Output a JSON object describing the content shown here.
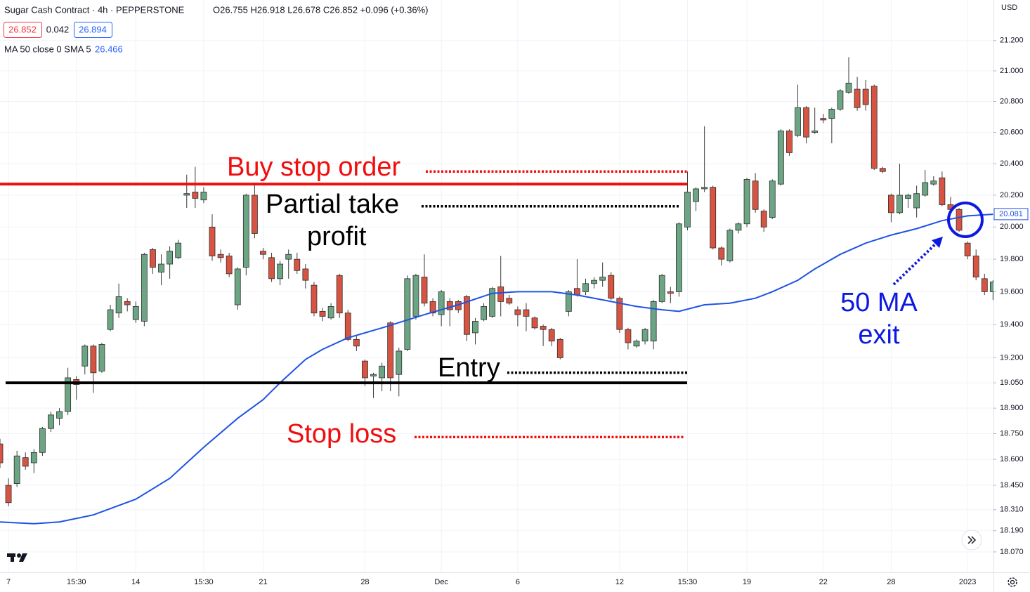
{
  "chart_data": {
    "type": "candlestick",
    "header": {
      "symbol": "Sugar Cash Contract · 4h · PEPPERSTONE",
      "ohlc_text": "O26.755 H26.918 L26.678 C26.852 +0.096 (+0.36%)",
      "bid": "26.852",
      "spread": "0.042",
      "ask": "26.894",
      "currency": "USD"
    },
    "log_scale": true,
    "grid": true,
    "up_color": "#6ba583",
    "down_color": "#d75442",
    "ylim": [
      17.955,
      21.47
    ],
    "yticks": [
      {
        "value": 21.2,
        "label": "21.200"
      },
      {
        "value": 21.0,
        "label": "21.000"
      },
      {
        "value": 20.8,
        "label": "20.800"
      },
      {
        "value": 20.6,
        "label": "20.600"
      },
      {
        "value": 20.4,
        "label": "20.400"
      },
      {
        "value": 20.2,
        "label": "20.200"
      },
      {
        "value": 20.0,
        "label": "20.000"
      },
      {
        "value": 19.8,
        "label": "19.800"
      },
      {
        "value": 19.6,
        "label": "19.600"
      },
      {
        "value": 19.4,
        "label": "19.400"
      },
      {
        "value": 19.2,
        "label": "19.200"
      },
      {
        "value": 19.05,
        "label": "19.050"
      },
      {
        "value": 18.9,
        "label": "18.900"
      },
      {
        "value": 18.75,
        "label": "18.750"
      },
      {
        "value": 18.6,
        "label": "18.600"
      },
      {
        "value": 18.45,
        "label": "18.450"
      },
      {
        "value": 18.31,
        "label": "18.310"
      },
      {
        "value": 18.19,
        "label": "18.190"
      },
      {
        "value": 18.07,
        "label": "18.070"
      }
    ],
    "categories": [
      null,
      "7",
      null,
      null,
      null,
      null,
      null,
      null,
      null,
      "15:30",
      null,
      null,
      null,
      null,
      null,
      null,
      "14",
      null,
      null,
      null,
      null,
      null,
      null,
      null,
      "15:30",
      null,
      null,
      null,
      null,
      null,
      null,
      "21",
      null,
      null,
      null,
      null,
      null,
      null,
      null,
      null,
      null,
      null,
      null,
      "28",
      null,
      null,
      null,
      null,
      null,
      null,
      null,
      null,
      "Dec",
      null,
      null,
      null,
      null,
      null,
      null,
      null,
      null,
      "6",
      null,
      null,
      null,
      null,
      null,
      null,
      null,
      null,
      null,
      null,
      null,
      "12",
      null,
      null,
      null,
      null,
      null,
      null,
      null,
      "15:30",
      null,
      null,
      null,
      null,
      null,
      null,
      "19",
      null,
      null,
      null,
      null,
      null,
      null,
      null,
      null,
      "22",
      null,
      null,
      null,
      null,
      null,
      null,
      null,
      "28",
      null,
      null,
      null,
      null,
      null,
      null,
      null,
      null,
      "2023",
      null,
      null,
      null
    ],
    "open": [
      18.69,
      18.45,
      18.46,
      18.61,
      18.58,
      18.64,
      18.78,
      18.84,
      18.88,
      19.07,
      19.15,
      19.27,
      19.12,
      19.37,
      19.47,
      19.54,
      19.43,
      19.42,
      19.86,
      19.72,
      19.77,
      19.81,
      20.2,
      20.22,
      20.17,
      20.0,
      19.83,
      19.82,
      19.52,
      19.75,
      20.2,
      19.85,
      19.81,
      19.68,
      19.8,
      19.8,
      19.74,
      19.64,
      19.48,
      19.44,
      19.7,
      19.47,
      19.31,
      19.18,
      19.09,
      19.08,
      19.41,
      19.1,
      19.25,
      19.45,
      19.69,
      19.54,
      19.46,
      19.54,
      19.54,
      19.57,
      19.35,
      19.43,
      19.45,
      19.63,
      19.56,
      19.49,
      19.49,
      19.44,
      19.39,
      19.37,
      19.31,
      19.48,
      19.62,
      19.6,
      19.65,
      19.67,
      19.7,
      19.56,
      19.37,
      19.27,
      19.3,
      19.3,
      19.54,
      19.6,
      19.6,
      20.0,
      20.16,
      20.24,
      20.25,
      19.87,
      19.79,
      19.98,
      20.02,
      20.29,
      20.1,
      20.06,
      20.27,
      20.61,
      20.58,
      20.76,
      20.6,
      20.69,
      20.69,
      20.75,
      20.86,
      20.88,
      20.88,
      20.9,
      20.37,
      20.2,
      20.09,
      20.18,
      20.12,
      20.2,
      20.27,
      20.31,
      20.14,
      20.11,
      19.9,
      19.82,
      19.68,
      19.6
    ],
    "high": [
      18.72,
      18.49,
      18.65,
      18.64,
      18.66,
      18.79,
      18.88,
      18.9,
      19.14,
      19.09,
      19.28,
      19.28,
      19.29,
      19.52,
      19.65,
      19.56,
      19.54,
      19.84,
      19.87,
      19.83,
      19.88,
      19.92,
      20.33,
      20.38,
      20.25,
      20.08,
      19.86,
      19.84,
      19.75,
      20.21,
      20.28,
      19.87,
      19.84,
      19.79,
      19.86,
      19.84,
      19.77,
      19.66,
      19.5,
      19.53,
      19.71,
      19.49,
      19.33,
      19.19,
      19.11,
      19.17,
      19.42,
      19.26,
      19.7,
      19.71,
      19.83,
      19.56,
      19.61,
      19.56,
      19.55,
      19.58,
      19.44,
      19.53,
      19.63,
      19.82,
      19.58,
      19.51,
      19.53,
      19.45,
      19.4,
      19.38,
      19.32,
      19.61,
      19.8,
      19.68,
      19.69,
      19.78,
      19.72,
      19.57,
      19.38,
      19.31,
      19.38,
      19.55,
      19.71,
      19.63,
      20.03,
      20.35,
      20.25,
      20.64,
      20.26,
      19.88,
      19.99,
      20.03,
      20.31,
      20.34,
      20.11,
      20.3,
      20.62,
      20.62,
      20.91,
      20.77,
      20.76,
      20.72,
      20.76,
      20.88,
      21.09,
      20.96,
      20.94,
      20.91,
      20.38,
      20.21,
      20.4,
      20.21,
      20.26,
      20.36,
      20.32,
      20.35,
      20.19,
      20.12,
      19.91,
      19.86,
      19.71,
      19.67
    ],
    "low": [
      18.55,
      18.33,
      18.44,
      18.54,
      18.52,
      18.62,
      18.76,
      18.8,
      18.86,
      18.95,
      19.1,
      18.99,
      19.11,
      19.36,
      19.44,
      19.48,
      19.41,
      19.39,
      19.71,
      19.64,
      19.68,
      19.8,
      20.12,
      20.12,
      20.15,
      19.79,
      19.78,
      19.69,
      19.49,
      19.7,
      19.93,
      19.8,
      19.66,
      19.64,
      19.68,
      19.71,
      19.62,
      19.45,
      19.42,
      19.43,
      19.44,
      19.3,
      19.24,
      19.03,
      18.96,
      19.0,
      19.0,
      18.97,
      19.24,
      19.43,
      19.51,
      19.45,
      19.39,
      19.39,
      19.47,
      19.3,
      19.28,
      19.42,
      19.44,
      19.45,
      19.52,
      19.39,
      19.36,
      19.37,
      19.27,
      19.27,
      19.19,
      19.45,
      19.57,
      19.58,
      19.62,
      19.63,
      19.55,
      19.35,
      19.25,
      19.26,
      19.28,
      19.25,
      19.53,
      19.53,
      19.57,
      19.98,
      20.1,
      20.22,
      19.86,
      19.76,
      19.78,
      19.96,
      20.0,
      20.09,
      19.97,
      20.05,
      20.26,
      20.45,
      20.57,
      20.53,
      20.59,
      20.66,
      20.53,
      20.74,
      20.85,
      20.74,
      20.74,
      20.36,
      20.34,
      20.03,
      20.08,
      20.12,
      20.06,
      20.19,
      20.26,
      20.13,
      20.09,
      19.97,
      19.8,
      19.67,
      19.58,
      19.55
    ],
    "close": [
      18.58,
      18.35,
      18.62,
      18.56,
      18.64,
      18.78,
      18.86,
      18.88,
      19.08,
      19.04,
      19.27,
      19.11,
      19.28,
      19.49,
      19.57,
      19.52,
      19.51,
      19.83,
      19.75,
      19.77,
      19.85,
      19.9,
      20.21,
      20.18,
      20.22,
      19.82,
      19.81,
      19.71,
      19.74,
      20.2,
      19.96,
      19.83,
      19.68,
      19.77,
      19.83,
      19.73,
      19.67,
      19.47,
      19.45,
      19.51,
      19.47,
      19.31,
      19.27,
      19.08,
      19.1,
      19.15,
      19.08,
      19.24,
      19.68,
      19.7,
      19.53,
      19.47,
      19.6,
      19.49,
      19.49,
      19.34,
      19.42,
      19.51,
      19.62,
      19.54,
      19.53,
      19.46,
      19.45,
      19.38,
      19.37,
      19.3,
      19.2,
      19.6,
      19.58,
      19.65,
      19.67,
      19.69,
      19.56,
      19.37,
      19.29,
      19.3,
      19.37,
      19.54,
      19.7,
      19.59,
      20.02,
      20.22,
      20.24,
      20.25,
      19.87,
      19.8,
      19.98,
      20.02,
      20.3,
      20.11,
      20.0,
      20.29,
      20.61,
      20.47,
      20.76,
      20.57,
      20.61,
      20.68,
      20.75,
      20.87,
      20.92,
      20.76,
      20.78,
      20.37,
      20.35,
      20.09,
      20.2,
      20.2,
      20.21,
      20.28,
      20.29,
      20.14,
      20.11,
      19.98,
      19.82,
      19.69,
      19.6,
      19.66
    ],
    "ma": {
      "name": "MA 50 close 0 SMA 5",
      "legend_value": "26.466",
      "color": "#1e53e5",
      "x": [
        0,
        4,
        7,
        11,
        16,
        20,
        24,
        28,
        31,
        33,
        36,
        38,
        41,
        45,
        50,
        54,
        58,
        61,
        65,
        68,
        71,
        75,
        78,
        80,
        83,
        86,
        89,
        91,
        94,
        96,
        99,
        102,
        105,
        108,
        111,
        114,
        117
      ],
      "values": [
        18.24,
        18.23,
        18.24,
        18.28,
        18.37,
        18.49,
        18.67,
        18.84,
        18.95,
        19.05,
        19.19,
        19.25,
        19.32,
        19.38,
        19.46,
        19.52,
        19.59,
        19.6,
        19.6,
        19.58,
        19.55,
        19.51,
        19.49,
        19.48,
        19.52,
        19.53,
        19.56,
        19.6,
        19.67,
        19.74,
        19.83,
        19.9,
        19.95,
        19.99,
        20.04,
        20.07,
        20.08
      ],
      "price_tag": {
        "value": 20.081,
        "label": "20.081"
      }
    },
    "lines": [
      {
        "color": "#f20d0d",
        "level": 20.27
      },
      {
        "color": "#000000",
        "level": 19.05
      }
    ],
    "annotations": [
      {
        "text": [
          "Buy stop order"
        ],
        "color": "#f20d0d",
        "level": 20.35
      },
      {
        "text": [
          "Partial take",
          "profit"
        ],
        "color": "#000000",
        "level": 20.13
      },
      {
        "text": [
          "Entry"
        ],
        "color": "#000000",
        "level": 19.11
      },
      {
        "text": [
          "Stop loss"
        ],
        "color": "#f20d0d",
        "level": 18.73
      },
      {
        "text": [
          "50 MA",
          "exit"
        ],
        "color": "#0d19e0"
      }
    ]
  }
}
